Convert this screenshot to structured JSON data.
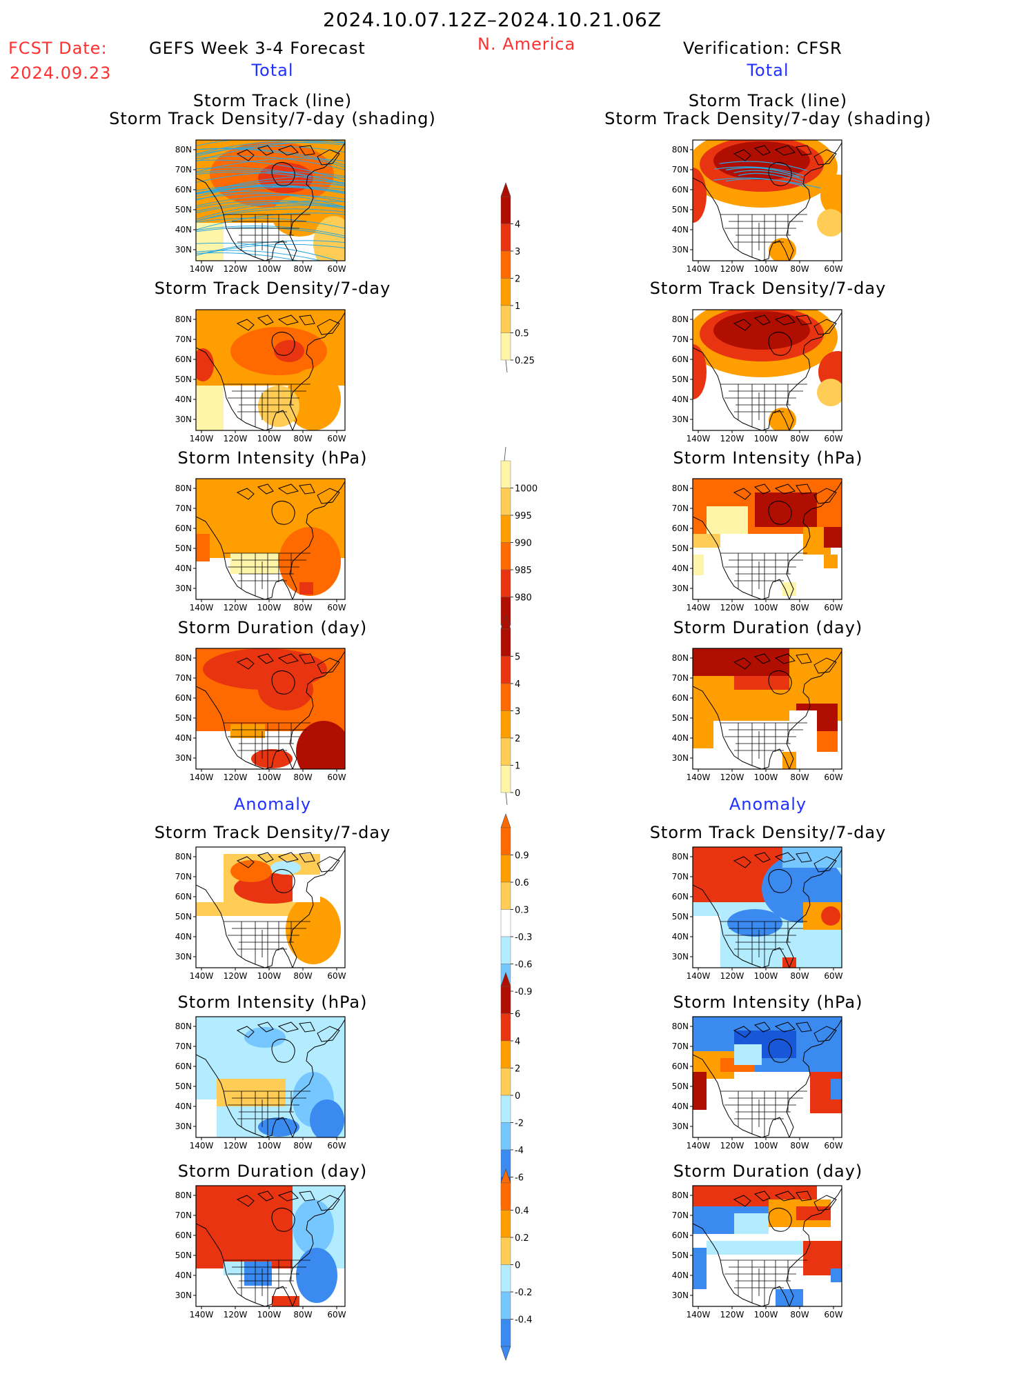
{
  "header": {
    "date_range": "2024.10.07.12Z–2024.10.21.06Z",
    "fcst_label": "FCST Date:",
    "fcst_date": "2024.09.23",
    "left_title": "GEFS Week 3-4 Forecast",
    "region": "N. America",
    "right_title": "Verification: CFSR",
    "left_total": "Total",
    "right_total": "Total",
    "left_anomaly": "Anomaly",
    "right_anomaly": "Anomaly"
  },
  "colors": {
    "pale_yellow": "#fff5a8",
    "yellow": "#ffcc55",
    "orange": "#ff9e00",
    "dark_orange": "#ff6a00",
    "red": "#e83410",
    "dark_red": "#b00e00",
    "light_blue": "#b4ecff",
    "mid_blue": "#76c6ff",
    "blue": "#3a8af0",
    "dark_blue": "#1858d8",
    "track_line": "#2aa8e0"
  },
  "panels": {
    "left": [
      {
        "title1": "Storm Track (line)",
        "title2": "Storm Track Density/7-day (shading)"
      },
      {
        "title1": "Storm Track Density/7-day",
        "title2": ""
      },
      {
        "title1": "Storm Intensity (hPa)",
        "title2": ""
      },
      {
        "title1": "Storm Duration (day)",
        "title2": ""
      },
      {
        "title1": "Storm Track Density/7-day",
        "title2": ""
      },
      {
        "title1": "Storm Intensity (hPa)",
        "title2": ""
      },
      {
        "title1": "Storm Duration (day)",
        "title2": ""
      }
    ],
    "right": [
      {
        "title1": "Storm Track (line)",
        "title2": "Storm Track Density/7-day (shading)"
      },
      {
        "title1": "Storm Track Density/7-day",
        "title2": ""
      },
      {
        "title1": "Storm Intensity (hPa)",
        "title2": ""
      },
      {
        "title1": "Storm Duration (day)",
        "title2": ""
      },
      {
        "title1": "Storm Track Density/7-day",
        "title2": ""
      },
      {
        "title1": "Storm Intensity (hPa)",
        "title2": ""
      },
      {
        "title1": "Storm Duration (day)",
        "title2": ""
      }
    ]
  },
  "chart_data": {
    "type": "heatmap",
    "axes": {
      "lat_ticks": [
        "80N",
        "70N",
        "60N",
        "50N",
        "40N",
        "30N"
      ],
      "lon_ticks": [
        "140W",
        "120W",
        "100W",
        "80W",
        "60W"
      ],
      "lon_range": [
        -140,
        -50
      ],
      "lat_range": [
        25,
        85
      ]
    },
    "colorbars": [
      {
        "name": "track_density_total",
        "labels": [
          "4",
          "3",
          "2",
          "1",
          "0.5",
          "0.25"
        ]
      },
      {
        "name": "intensity_total",
        "labels": [
          "1000",
          "995",
          "990",
          "985",
          "980"
        ]
      },
      {
        "name": "duration_total",
        "labels": [
          "5",
          "4",
          "3",
          "2",
          "1",
          "0"
        ]
      },
      {
        "name": "track_density_anomaly",
        "labels": [
          "0.9",
          "0.6",
          "0.3",
          "-0.3",
          "-0.6",
          "-0.9"
        ]
      },
      {
        "name": "intensity_anomaly",
        "labels": [
          "6",
          "4",
          "2",
          "0",
          "-2",
          "-4",
          "-6"
        ]
      },
      {
        "name": "duration_anomaly",
        "labels": [
          "0.4",
          "0.2",
          "0",
          "-0.2",
          "-0.4"
        ]
      }
    ]
  }
}
